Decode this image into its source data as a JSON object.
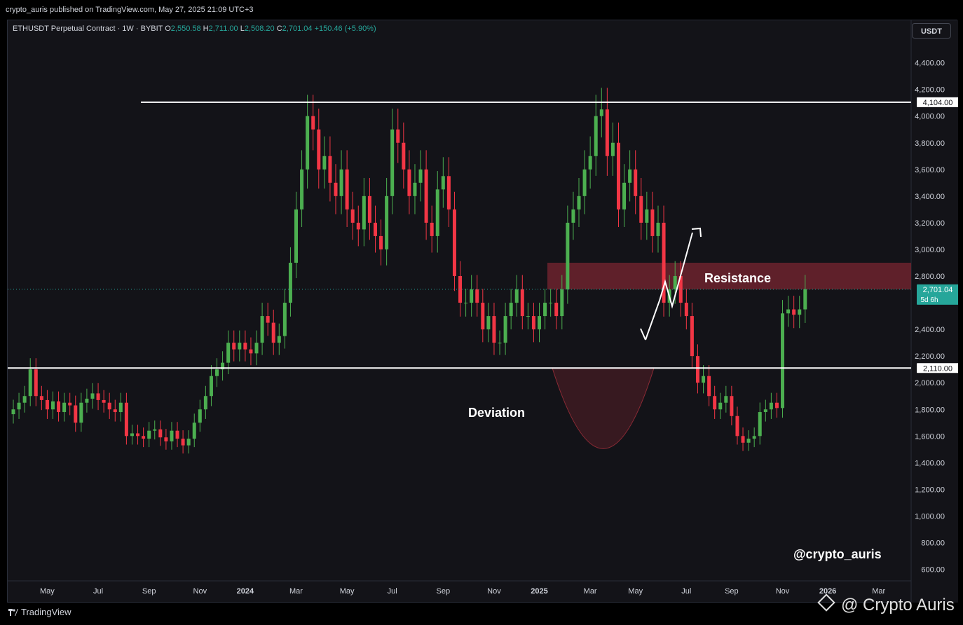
{
  "header": {
    "publisher_text": "crypto_auris published on TradingView.com, May 27, 2025 21:09 UTC+3"
  },
  "legend": {
    "symbol": "ETHUSDT Perpetual Contract · 1W · BYBIT",
    "open_label": "O",
    "open": "2,550.58",
    "high_label": "H",
    "high": "2,711.00",
    "low_label": "L",
    "low": "2,508.20",
    "close_label": "C",
    "close": "2,701.04",
    "change": "+150.46 (+5.90%)"
  },
  "currency_button": "USDT",
  "footer": {
    "tradingview_label": "TradingView",
    "watermark": "@ Crypto Auris"
  },
  "colors": {
    "up": "#26a69a",
    "up_candle": "#4caf50",
    "down": "#f23645",
    "background": "#131318",
    "zone": "#7a2530"
  },
  "chart_data": {
    "type": "candlestick",
    "ylim": [
      550,
      4550
    ],
    "yticks": [
      "4,400.00",
      "4,200.00",
      "4,000.00",
      "3,800.00",
      "3,600.00",
      "3,400.00",
      "3,200.00",
      "3,000.00",
      "2,800.00",
      "2,400.00",
      "2,200.00",
      "2,000.00",
      "1,800.00",
      "1,600.00",
      "1,400.00",
      "1,200.00",
      "1,000.00",
      "800.00",
      "600.00"
    ],
    "ytick_values": [
      4400,
      4200,
      4000,
      3800,
      3600,
      3400,
      3200,
      3000,
      2800,
      2400,
      2200,
      2000,
      1800,
      1600,
      1400,
      1200,
      1000,
      800,
      600
    ],
    "xticks": [
      {
        "label": "May",
        "week": 6,
        "bold": false
      },
      {
        "label": "Jul",
        "week": 15,
        "bold": false
      },
      {
        "label": "Sep",
        "week": 24,
        "bold": false
      },
      {
        "label": "Nov",
        "week": 33,
        "bold": false
      },
      {
        "label": "2024",
        "week": 41,
        "bold": true
      },
      {
        "label": "Mar",
        "week": 50,
        "bold": false
      },
      {
        "label": "May",
        "week": 59,
        "bold": false
      },
      {
        "label": "Jul",
        "week": 67,
        "bold": false
      },
      {
        "label": "Sep",
        "week": 76,
        "bold": false
      },
      {
        "label": "Nov",
        "week": 85,
        "bold": false
      },
      {
        "label": "2025",
        "week": 93,
        "bold": true
      },
      {
        "label": "Mar",
        "week": 102,
        "bold": false
      },
      {
        "label": "May",
        "week": 110,
        "bold": false
      },
      {
        "label": "Jul",
        "week": 119,
        "bold": false
      },
      {
        "label": "Sep",
        "week": 127,
        "bold": false
      },
      {
        "label": "Nov",
        "week": 136,
        "bold": false
      },
      {
        "label": "2026",
        "week": 144,
        "bold": true
      },
      {
        "label": "Mar",
        "week": 153,
        "bold": false
      }
    ],
    "closes": [
      1800,
      1850,
      1900,
      2100,
      1900,
      1870,
      1800,
      1860,
      1780,
      1850,
      1830,
      1700,
      1850,
      1880,
      1920,
      1870,
      1850,
      1800,
      1780,
      1850,
      1600,
      1620,
      1600,
      1580,
      1640,
      1650,
      1590,
      1560,
      1640,
      1580,
      1530,
      1580,
      1700,
      1800,
      1900,
      2050,
      2100,
      2150,
      2300,
      2250,
      2300,
      2250,
      2220,
      2300,
      2500,
      2450,
      2300,
      2350,
      2600,
      2900,
      3300,
      3600,
      4000,
      3900,
      3600,
      3700,
      3500,
      3400,
      3600,
      3300,
      3200,
      3150,
      3400,
      3200,
      3100,
      3000,
      3400,
      3900,
      3800,
      3600,
      3400,
      3500,
      3600,
      3200,
      3100,
      3450,
      3550,
      3300,
      2800,
      2600,
      2600,
      2700,
      2600,
      2400,
      2500,
      2300,
      2300,
      2500,
      2600,
      2700,
      2500,
      2500,
      2400,
      2500,
      2600,
      2600,
      2500,
      2700,
      3200,
      3300,
      3400,
      3600,
      3700,
      4000,
      4050,
      3700,
      3800,
      3300,
      3500,
      3600,
      3400,
      3200,
      3300,
      3100,
      3200,
      2600,
      2700,
      2800,
      2600,
      2500,
      2200,
      2000,
      2050,
      1900,
      1800,
      1850,
      1900,
      1750,
      1600,
      1550,
      1580,
      1600,
      1780,
      1800,
      1850,
      1810,
      2520,
      2550,
      2510,
      2550,
      2701
    ],
    "levels": [
      {
        "label": "4,104.00",
        "value": 4104
      },
      {
        "label": "2,110.00",
        "value": 2110
      }
    ],
    "last_price": {
      "label": "2,701.04",
      "sublabel": "5d 6h",
      "value": 2701
    },
    "resistance_zone": {
      "from": 2700,
      "to": 2900,
      "label": "Resistance"
    },
    "deviation_zone": {
      "label": "Deviation"
    },
    "annotation_handle": "@crypto_auris"
  }
}
